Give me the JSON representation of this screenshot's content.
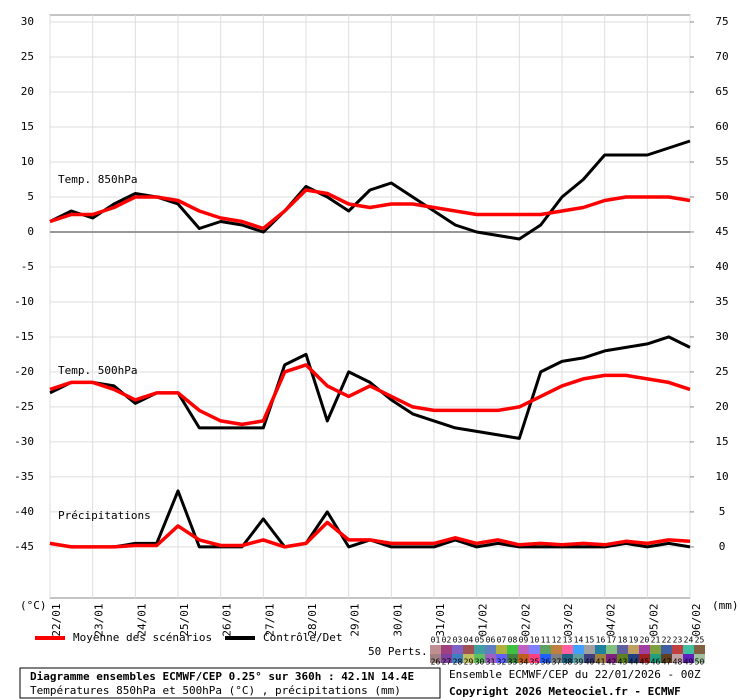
{
  "chart_data": {
    "type": "line",
    "title": "Diagramme ensembles ECMWF/CEP 0.25° sur 360h : 42.1N 14.4E",
    "subtitle": "Températures 850hPa et 500hPa (°C) , précipitations (mm)",
    "run": "Ensemble ECMWF/CEP du 22/01/2026 - 00Z",
    "copyright": "Copyright 2026 Meteociel.fr - ECMWF",
    "ylabel": "(°C)",
    "y2label": "(mm)",
    "categories": [
      "22/01",
      null,
      "23/01",
      null,
      "24/01",
      null,
      "25/01",
      null,
      "26/01",
      null,
      "27/01",
      null,
      "28/01",
      null,
      "29/01",
      null,
      "30/01",
      null,
      "31/01",
      null,
      "01/02",
      null,
      "02/02",
      null,
      "03/02",
      null,
      "04/02",
      null,
      "05/02",
      null,
      "06/02"
    ],
    "ylim": [
      -52.3,
      31
    ],
    "yticks": [
      30,
      25,
      20,
      15,
      10,
      5,
      0,
      -5,
      -10,
      -15,
      -20,
      -25,
      -30,
      -35,
      -40,
      -45
    ],
    "y2lim": [
      -7.3,
      76
    ],
    "y2ticks": [
      75,
      70,
      65,
      60,
      55,
      50,
      45,
      40,
      35,
      30,
      25,
      20,
      15,
      10,
      5,
      0
    ],
    "grid": true,
    "legend": [
      {
        "name": "Moyenne des scénarios",
        "color": "#ff0000"
      },
      {
        "name": "Contrôle/Det",
        "color": "#000000"
      }
    ],
    "panels": [
      {
        "label": "Temp. 850hPa",
        "axis": "y",
        "mean": [
          1.5,
          2.5,
          2.5,
          3.5,
          5,
          5,
          4.5,
          3,
          2,
          1.5,
          0.5,
          3,
          6,
          5.5,
          4,
          3.5,
          4,
          4,
          3.5,
          3,
          2.5,
          2.5,
          2.5,
          2.5,
          3,
          3.5,
          4.5,
          5,
          5,
          5,
          4.5
        ],
        "control": [
          1.5,
          3,
          2,
          4,
          5.5,
          5,
          4,
          0.5,
          1.5,
          1,
          0,
          3,
          6.5,
          5,
          3,
          6,
          7,
          5,
          3,
          1,
          0,
          -0.5,
          -1,
          1,
          5,
          7.5,
          11,
          11,
          11,
          12,
          13
        ]
      },
      {
        "label": "Temp. 500hPa",
        "axis": "y",
        "mean": [
          -22.5,
          -21.5,
          -21.5,
          -22.5,
          -24,
          -23,
          -23,
          -25.5,
          -27,
          -27.5,
          -27,
          -20,
          -19,
          -22,
          -23.5,
          -22,
          -23.5,
          -25,
          -25.5,
          -25.5,
          -25.5,
          -25.5,
          -25,
          -23.5,
          -22,
          -21,
          -20.5,
          -20.5,
          -21,
          -21.5,
          -22.5
        ],
        "control": [
          -23,
          -21.5,
          -21.5,
          -22,
          -24.5,
          -23,
          -23,
          -28,
          -28,
          -28,
          -28,
          -19,
          -17.5,
          -27,
          -20,
          -21.5,
          -24,
          -26,
          -27,
          -28,
          -28.5,
          -29,
          -29.5,
          -20,
          -18.5,
          -18,
          -17,
          -16.5,
          -16,
          -15,
          -16.5
        ]
      },
      {
        "label": "Précipitations",
        "axis": "y2",
        "mean": [
          0.5,
          0,
          0,
          0,
          0.2,
          0.2,
          3,
          1,
          0.2,
          0.2,
          1,
          0,
          0.5,
          3.5,
          1,
          1,
          0.5,
          0.5,
          0.5,
          1.3,
          0.5,
          1,
          0.3,
          0.5,
          0.3,
          0.5,
          0.3,
          0.8,
          0.5,
          1,
          0.8
        ],
        "control": [
          0.5,
          0,
          0,
          0,
          0.5,
          0.5,
          8,
          0,
          0,
          0,
          4,
          0,
          0.5,
          5,
          0,
          1,
          0,
          0,
          0,
          1,
          0,
          0.5,
          0,
          0,
          0,
          0,
          0,
          0.5,
          0,
          0.5,
          0
        ]
      }
    ],
    "perts_label": "50 Perts.",
    "perts": [
      {
        "name": "01",
        "color": "#c09090"
      },
      {
        "name": "02",
        "color": "#a04080"
      },
      {
        "name": "03",
        "color": "#8060c0"
      },
      {
        "name": "04",
        "color": "#a05050"
      },
      {
        "name": "05",
        "color": "#40a0a0"
      },
      {
        "name": "06",
        "color": "#6080c0"
      },
      {
        "name": "07",
        "color": "#b0b040"
      },
      {
        "name": "08",
        "color": "#40c040"
      },
      {
        "name": "09",
        "color": "#c060c0"
      },
      {
        "name": "10",
        "color": "#8080ff"
      },
      {
        "name": "11",
        "color": "#60a060"
      },
      {
        "name": "12",
        "color": "#c08040"
      },
      {
        "name": "13",
        "color": "#ff60a0"
      },
      {
        "name": "14",
        "color": "#40a0ff"
      },
      {
        "name": "15",
        "color": "#a0a0a0"
      },
      {
        "name": "16",
        "color": "#2080a0"
      },
      {
        "name": "17",
        "color": "#80c080"
      },
      {
        "name": "18",
        "color": "#6060a0"
      },
      {
        "name": "19",
        "color": "#c0a060"
      },
      {
        "name": "20",
        "color": "#a040a0"
      },
      {
        "name": "21",
        "color": "#80a040"
      },
      {
        "name": "22",
        "color": "#4060a0"
      },
      {
        "name": "23",
        "color": "#c04040"
      },
      {
        "name": "24",
        "color": "#40c0a0"
      },
      {
        "name": "25",
        "color": "#806040"
      },
      {
        "name": "26",
        "color": "#a08080"
      },
      {
        "name": "27",
        "color": "#8040a0"
      },
      {
        "name": "28",
        "color": "#4080c0"
      },
      {
        "name": "29",
        "color": "#c0c060"
      },
      {
        "name": "30",
        "color": "#60c060"
      },
      {
        "name": "31",
        "color": "#a060c0"
      },
      {
        "name": "32",
        "color": "#6060ff"
      },
      {
        "name": "33",
        "color": "#408040"
      },
      {
        "name": "34",
        "color": "#c06020"
      },
      {
        "name": "35",
        "color": "#ff4080"
      },
      {
        "name": "36",
        "color": "#2060ff"
      },
      {
        "name": "37",
        "color": "#808080"
      },
      {
        "name": "38",
        "color": "#206080"
      },
      {
        "name": "39",
        "color": "#60a0a0"
      },
      {
        "name": "40",
        "color": "#404080"
      },
      {
        "name": "41",
        "color": "#a08040"
      },
      {
        "name": "42",
        "color": "#802080"
      },
      {
        "name": "43",
        "color": "#608020"
      },
      {
        "name": "44",
        "color": "#204080"
      },
      {
        "name": "45",
        "color": "#a02020"
      },
      {
        "name": "46",
        "color": "#20a080"
      },
      {
        "name": "47",
        "color": "#604020"
      },
      {
        "name": "48",
        "color": "#c0a0a0"
      },
      {
        "name": "49",
        "color": "#6020c0"
      },
      {
        "name": "50",
        "color": "#a0c0a0"
      }
    ]
  }
}
